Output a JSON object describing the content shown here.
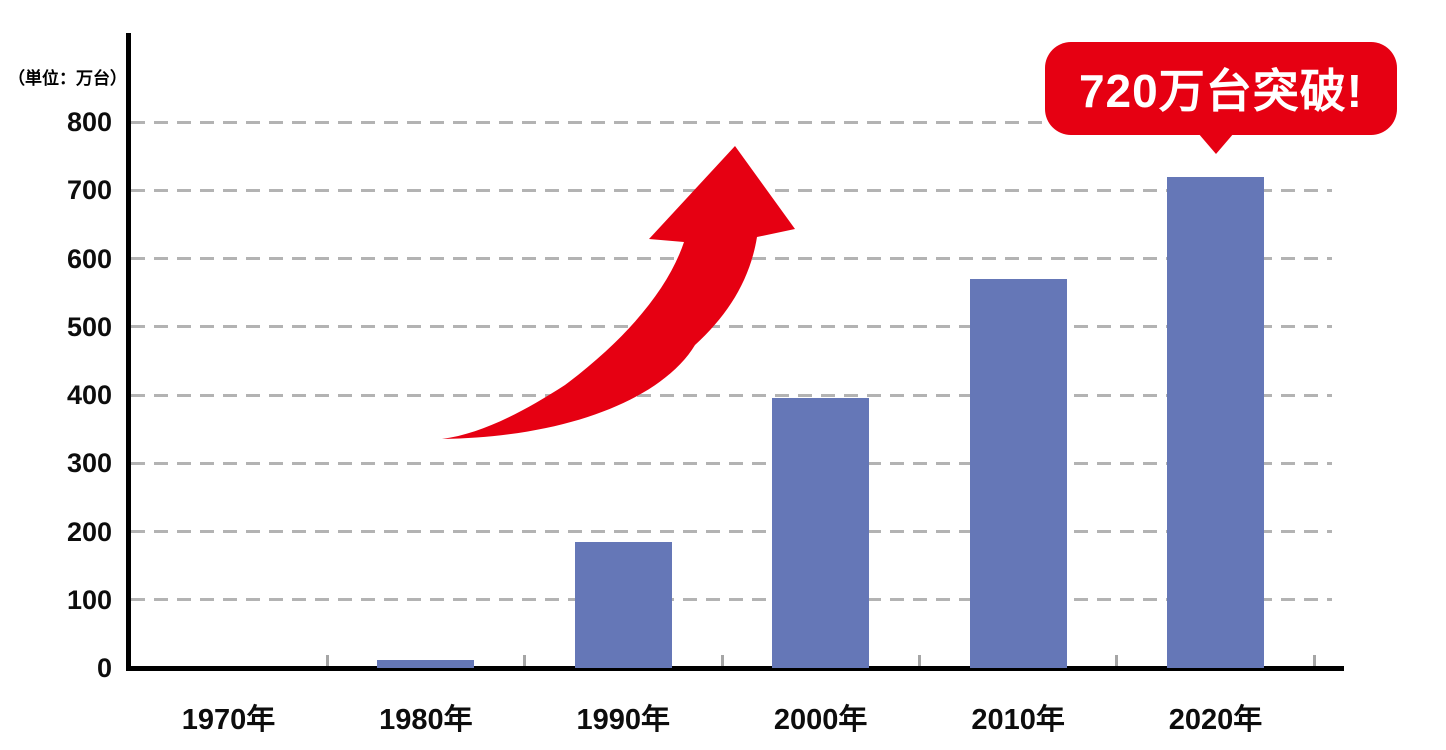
{
  "chart_data": {
    "type": "bar",
    "unit_label": "（単位：万台）",
    "categories": [
      "1970年",
      "1980年",
      "1990年",
      "2000年",
      "2010年",
      "2020年"
    ],
    "values": [
      0,
      12,
      185,
      395,
      570,
      720
    ],
    "xlabel": "",
    "ylabel": "万台",
    "ylim": [
      0,
      800
    ],
    "yticks": [
      0,
      100,
      200,
      300,
      400,
      500,
      600,
      700,
      800
    ],
    "grid": "horizontal dashed gray lines at every 100",
    "legend": "none",
    "bar_color": "#6577b7",
    "accent_red": "#e60012",
    "grid_color": "#b3b3b3",
    "axis_color": "#000000",
    "annotations": [
      {
        "type": "callout-bubble",
        "text": "720万台突破!",
        "target": "2020年",
        "color": "#e60012"
      },
      {
        "type": "growth-arrow",
        "description": "red curved swoosh arrow rising from lower left toward upper right",
        "color": "#e60012"
      }
    ]
  }
}
